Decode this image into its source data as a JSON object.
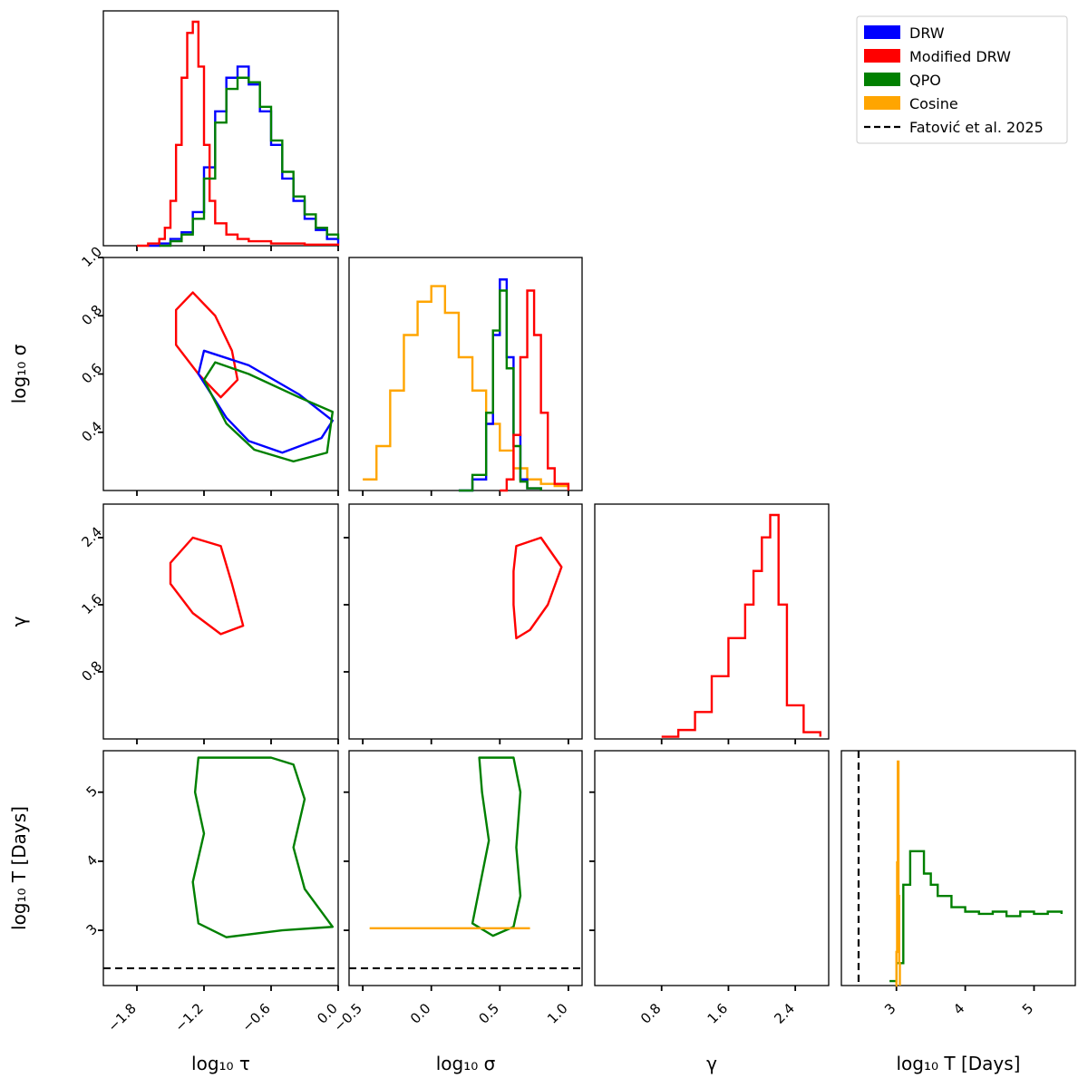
{
  "chart_data": {
    "type": "corner",
    "parameters": [
      {
        "key": "log_tau",
        "label": "log₁₀ τ",
        "range": [
          -2.1,
          0.0
        ],
        "ticks": [
          -1.8,
          -1.2,
          -0.6,
          0.0
        ],
        "tick_labels": [
          "−1.8",
          "−1.2",
          "−0.6",
          "0.0"
        ]
      },
      {
        "key": "log_sigma",
        "label": "log₁₀ σ",
        "range": [
          -0.6,
          1.1
        ],
        "ticks": [
          -0.5,
          0.0,
          0.5,
          1.0
        ],
        "tick_labels": [
          "−0.5",
          "0.0",
          "0.5",
          "1.0"
        ],
        "y_range": [
          0.2,
          1.0
        ],
        "y_ticks": [
          0.4,
          0.6,
          0.8,
          1.0
        ],
        "y_tick_labels": [
          "0.4",
          "0.6",
          "0.8",
          "1.0"
        ]
      },
      {
        "key": "gamma",
        "label": "γ",
        "range": [
          0.0,
          2.8
        ],
        "ticks": [
          0.8,
          1.6,
          2.4
        ],
        "tick_labels": [
          "0.8",
          "1.6",
          "2.4"
        ],
        "y_tick_labels": [
          "0.8",
          "1.6",
          "2.4"
        ]
      },
      {
        "key": "log_T",
        "label": "log₁₀ T [Days]",
        "range": [
          2.2,
          5.6
        ],
        "ticks": [
          3,
          4,
          5
        ],
        "tick_labels": [
          "3",
          "4",
          "5"
        ],
        "y_tick_labels": [
          "3",
          "4",
          "5"
        ]
      }
    ],
    "legend": {
      "placement": "top-right",
      "entries": [
        {
          "label": "DRW",
          "color": "#0000ff",
          "style": "patch"
        },
        {
          "label": "Modified DRW",
          "color": "#ff0000",
          "style": "patch"
        },
        {
          "label": "QPO",
          "color": "#008000",
          "style": "patch"
        },
        {
          "label": "Cosine",
          "color": "#ffa500",
          "style": "patch"
        },
        {
          "label": "Fatović et al. 2025",
          "color": "#000000",
          "style": "dashed-line"
        }
      ]
    },
    "reference": {
      "label": "Fatović et al. 2025",
      "log_T": 2.45
    },
    "histograms": {
      "log_tau": {
        "DRW": {
          "x": [
            -1.7,
            -1.6,
            -1.5,
            -1.4,
            -1.3,
            -1.2,
            -1.1,
            -1.0,
            -0.9,
            -0.8,
            -0.7,
            -0.6,
            -0.5,
            -0.4,
            -0.3,
            -0.2,
            -0.1,
            0.0
          ],
          "y": [
            0,
            0.01,
            0.03,
            0.06,
            0.15,
            0.35,
            0.6,
            0.75,
            0.8,
            0.72,
            0.6,
            0.45,
            0.3,
            0.2,
            0.12,
            0.07,
            0.03,
            0.01
          ]
        },
        "Modified DRW": {
          "x": [
            -1.8,
            -1.7,
            -1.6,
            -1.55,
            -1.5,
            -1.45,
            -1.4,
            -1.35,
            -1.3,
            -1.25,
            -1.2,
            -1.15,
            -1.1,
            -1.0,
            -0.9,
            -0.8,
            -0.6,
            -0.3,
            0.0
          ],
          "y": [
            0,
            0.01,
            0.03,
            0.08,
            0.2,
            0.45,
            0.75,
            0.95,
            1.0,
            0.8,
            0.45,
            0.2,
            0.1,
            0.05,
            0.03,
            0.02,
            0.01,
            0.005,
            0
          ]
        },
        "QPO": {
          "x": [
            -1.6,
            -1.5,
            -1.4,
            -1.3,
            -1.2,
            -1.1,
            -1.0,
            -0.9,
            -0.8,
            -0.7,
            -0.6,
            -0.5,
            -0.4,
            -0.3,
            -0.2,
            -0.1,
            0.0
          ],
          "y": [
            0,
            0.02,
            0.05,
            0.12,
            0.3,
            0.55,
            0.7,
            0.75,
            0.73,
            0.62,
            0.47,
            0.33,
            0.22,
            0.14,
            0.08,
            0.05,
            0.03
          ]
        }
      },
      "log_sigma": {
        "Cosine": {
          "x": [
            -0.5,
            -0.4,
            -0.3,
            -0.2,
            -0.1,
            0.0,
            0.1,
            0.2,
            0.3,
            0.4,
            0.5,
            0.6,
            0.7,
            0.8,
            0.9,
            1.0
          ],
          "y": [
            0.05,
            0.2,
            0.45,
            0.7,
            0.85,
            0.92,
            0.8,
            0.6,
            0.45,
            0.3,
            0.18,
            0.1,
            0.05,
            0.03,
            0.02,
            0.01
          ]
        },
        "DRW": {
          "x": [
            0.2,
            0.3,
            0.4,
            0.45,
            0.5,
            0.55,
            0.6,
            0.65,
            0.7,
            0.8
          ],
          "y": [
            0,
            0.05,
            0.3,
            0.7,
            0.95,
            0.6,
            0.25,
            0.05,
            0.01,
            0
          ]
        },
        "QPO": {
          "x": [
            0.2,
            0.3,
            0.4,
            0.45,
            0.5,
            0.55,
            0.6,
            0.65,
            0.7,
            0.8
          ],
          "y": [
            0,
            0.07,
            0.35,
            0.72,
            0.9,
            0.55,
            0.2,
            0.04,
            0.01,
            0
          ]
        },
        "Modified DRW": {
          "x": [
            0.5,
            0.55,
            0.6,
            0.65,
            0.7,
            0.75,
            0.8,
            0.85,
            0.9,
            1.0
          ],
          "y": [
            0,
            0.05,
            0.25,
            0.6,
            0.9,
            0.7,
            0.35,
            0.1,
            0.03,
            0
          ]
        }
      },
      "gamma": {
        "Modified DRW": {
          "x": [
            0.8,
            1.0,
            1.2,
            1.4,
            1.6,
            1.8,
            1.9,
            2.0,
            2.1,
            2.2,
            2.3,
            2.5,
            2.7
          ],
          "y": [
            0.01,
            0.04,
            0.12,
            0.28,
            0.45,
            0.6,
            0.75,
            0.9,
            1.0,
            0.6,
            0.15,
            0.03,
            0.01
          ]
        }
      },
      "log_T": {
        "QPO": {
          "x": [
            2.9,
            3.0,
            3.1,
            3.2,
            3.3,
            3.4,
            3.5,
            3.6,
            3.8,
            4.0,
            4.2,
            4.4,
            4.6,
            4.8,
            5.0,
            5.2,
            5.4
          ],
          "y": [
            0.02,
            0.1,
            0.45,
            0.6,
            0.6,
            0.5,
            0.45,
            0.4,
            0.35,
            0.33,
            0.32,
            0.33,
            0.31,
            0.33,
            0.32,
            0.33,
            0.32
          ]
        },
        "Cosine": {
          "x": [
            2.99,
            3.0,
            3.01,
            3.02,
            3.03,
            3.04,
            3.05
          ],
          "y": [
            0,
            0.15,
            0.55,
            1.0,
            0.4,
            0.1,
            0
          ]
        }
      }
    },
    "contours": {
      "sigma_vs_tau": {
        "Modified DRW": [
          [
            -1.3,
            0.88
          ],
          [
            -1.1,
            0.8
          ],
          [
            -0.95,
            0.68
          ],
          [
            -0.9,
            0.58
          ],
          [
            -1.05,
            0.52
          ],
          [
            -1.25,
            0.6
          ],
          [
            -1.45,
            0.7
          ],
          [
            -1.45,
            0.82
          ]
        ],
        "DRW": [
          [
            -1.2,
            0.68
          ],
          [
            -0.8,
            0.63
          ],
          [
            -0.35,
            0.53
          ],
          [
            -0.05,
            0.44
          ],
          [
            -0.15,
            0.38
          ],
          [
            -0.5,
            0.33
          ],
          [
            -0.8,
            0.37
          ],
          [
            -1.0,
            0.45
          ],
          [
            -1.25,
            0.6
          ]
        ],
        "QPO": [
          [
            -1.1,
            0.64
          ],
          [
            -0.8,
            0.6
          ],
          [
            -0.35,
            0.52
          ],
          [
            -0.05,
            0.47
          ],
          [
            -0.1,
            0.33
          ],
          [
            -0.4,
            0.3
          ],
          [
            -0.75,
            0.34
          ],
          [
            -1.0,
            0.43
          ],
          [
            -1.2,
            0.58
          ]
        ]
      },
      "gamma_vs_tau": {
        "Modified DRW": [
          [
            -1.5,
            2.1
          ],
          [
            -1.3,
            2.4
          ],
          [
            -1.05,
            2.3
          ],
          [
            -0.95,
            1.85
          ],
          [
            -0.85,
            1.35
          ],
          [
            -1.05,
            1.25
          ],
          [
            -1.3,
            1.5
          ],
          [
            -1.5,
            1.85
          ]
        ]
      },
      "gamma_vs_sigma": {
        "Modified DRW": [
          [
            0.62,
            2.3
          ],
          [
            0.8,
            2.4
          ],
          [
            0.95,
            2.05
          ],
          [
            0.85,
            1.6
          ],
          [
            0.72,
            1.3
          ],
          [
            0.62,
            1.2
          ],
          [
            0.6,
            1.6
          ],
          [
            0.6,
            2.0
          ]
        ]
      },
      "T_vs_tau": {
        "QPO": [
          [
            -1.25,
            5.5
          ],
          [
            -0.6,
            5.5
          ],
          [
            -0.4,
            5.4
          ],
          [
            -0.3,
            4.9
          ],
          [
            -0.4,
            4.2
          ],
          [
            -0.3,
            3.6
          ],
          [
            -0.05,
            3.05
          ],
          [
            -0.5,
            3.0
          ],
          [
            -1.0,
            2.9
          ],
          [
            -1.25,
            3.1
          ],
          [
            -1.3,
            3.7
          ],
          [
            -1.2,
            4.4
          ],
          [
            -1.28,
            5.0
          ]
        ]
      },
      "T_vs_sigma": {
        "QPO": [
          [
            0.35,
            5.5
          ],
          [
            0.6,
            5.5
          ],
          [
            0.65,
            5.0
          ],
          [
            0.62,
            4.2
          ],
          [
            0.65,
            3.5
          ],
          [
            0.6,
            3.05
          ],
          [
            0.45,
            2.92
          ],
          [
            0.3,
            3.1
          ],
          [
            0.35,
            3.6
          ],
          [
            0.42,
            4.3
          ],
          [
            0.37,
            5.0
          ]
        ],
        "Cosine": [
          [
            -0.45,
            3.03
          ],
          [
            0.72,
            3.03
          ]
        ]
      }
    },
    "axis_labels": {
      "x": [
        "log₁₀ τ",
        "log₁₀ σ",
        "γ",
        "log₁₀ T [Days]"
      ],
      "y": [
        "log₁₀ σ",
        "γ",
        "log₁₀ T [Days]"
      ]
    }
  }
}
